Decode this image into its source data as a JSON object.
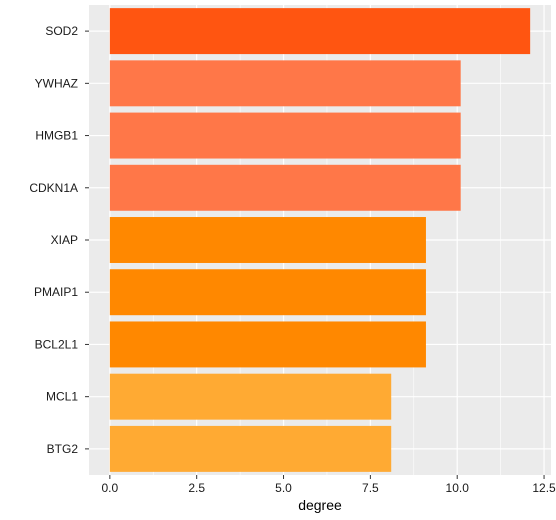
{
  "chart_data": {
    "type": "bar",
    "orientation": "horizontal",
    "categories": [
      "SOD2",
      "YWHAZ",
      "HMGB1",
      "CDKN1A",
      "XIAP",
      "PMAIP1",
      "BCL2L1",
      "MCL1",
      "BTG2"
    ],
    "values": [
      12.1,
      10.1,
      10.1,
      10.1,
      9.1,
      9.1,
      9.1,
      8.1,
      8.1
    ],
    "bar_colors": [
      "#ff5511",
      "#ff7748",
      "#ff7748",
      "#ff7748",
      "#ff8800",
      "#ff8800",
      "#ff8800",
      "#ffaa33",
      "#ffaa33"
    ],
    "xlabel": "degree",
    "ylabel": "",
    "xlim": [
      -0.6,
      12.7
    ],
    "xticks": [
      0,
      2.5,
      5,
      7.5,
      10,
      12.5
    ],
    "xtick_labels": [
      "0.0",
      "2.5",
      "5.0",
      "7.5",
      "10.0",
      "12.5"
    ],
    "grid": true,
    "legend": "none",
    "panel_background": "#ebebeb",
    "grid_color": "#ffffff"
  }
}
